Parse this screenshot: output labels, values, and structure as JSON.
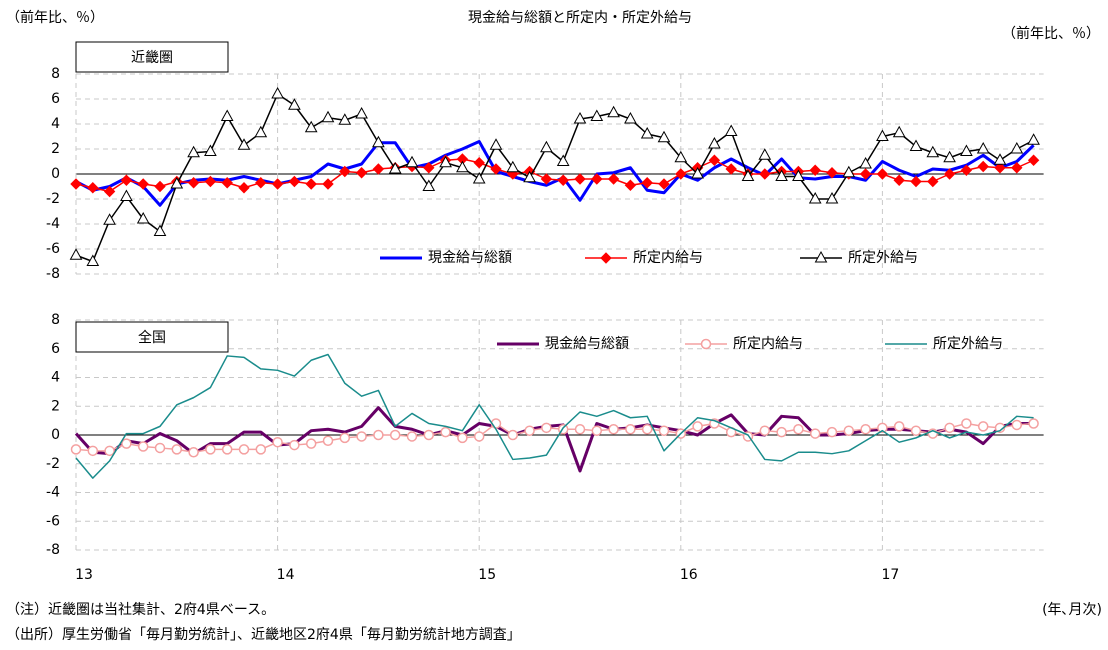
{
  "chart_data": [
    {
      "type": "line",
      "title": "現金給与総額と所定内・所定外給与",
      "y_label": "（前年比、％）",
      "y2_label": "（前年比、％）",
      "panel_label": "近畿圏",
      "ylim": [
        -8,
        8
      ],
      "yticks": [
        8,
        6,
        4,
        2,
        0,
        -2,
        -4,
        -6,
        -8
      ],
      "grid": true,
      "series": [
        {
          "name": "現金給与総額",
          "color": "#0000ff",
          "marker": "none",
          "values": [
            -0.6,
            -1.3,
            -1.0,
            -0.3,
            -1.0,
            -2.5,
            -0.8,
            -0.5,
            -0.4,
            -0.5,
            -0.2,
            -0.5,
            -0.8,
            -0.5,
            -0.2,
            0.8,
            0.4,
            0.8,
            2.5,
            2.5,
            0.5,
            0.8,
            1.5,
            2.0,
            2.6,
            0.2,
            -0.2,
            -0.6,
            -0.9,
            -0.3,
            -2.1,
            0,
            0.1,
            0.5,
            -1.3,
            -1.5,
            0,
            -0.5,
            0.5,
            1.2,
            0.5,
            -0.1,
            1.2,
            -0.3,
            -0.4,
            -0.2,
            -0.2,
            -0.5,
            1.0,
            0.3,
            -0.2,
            0.4,
            0.3,
            0.7,
            1.5,
            0.5,
            1.0,
            2.3
          ]
        },
        {
          "name": "所定内給与",
          "color": "#ff0000",
          "marker": "diamond",
          "values": [
            -0.8,
            -1.1,
            -1.4,
            -0.5,
            -0.8,
            -1.0,
            -0.6,
            -0.7,
            -0.6,
            -0.7,
            -1.1,
            -0.7,
            -0.8,
            -0.6,
            -0.8,
            -0.8,
            0.2,
            0.1,
            0.4,
            0.5,
            0.6,
            0.5,
            1.1,
            1.2,
            0.9,
            0.4,
            0,
            0.2,
            -0.4,
            -0.5,
            -0.4,
            -0.4,
            -0.4,
            -0.9,
            -0.7,
            -0.8,
            0,
            0.5,
            1.1,
            0.4,
            0,
            0,
            0.2,
            0.2,
            0.3,
            0.1,
            0,
            0,
            0,
            -0.5,
            -0.6,
            -0.6,
            0,
            0.3,
            0.6,
            0.5,
            0.5,
            1.1
          ]
        },
        {
          "name": "所定外給与",
          "color": "#000000",
          "marker": "triangle",
          "values": [
            -6.5,
            -7,
            -3.7,
            -1.8,
            -3.6,
            -4.6,
            -0.8,
            1.7,
            1.8,
            4.6,
            2.3,
            3.3,
            6.4,
            5.5,
            3.7,
            4.5,
            4.3,
            4.8,
            2.5,
            0.4,
            0.9,
            -1.0,
            0.9,
            0.5,
            -0.4,
            2.3,
            0.5,
            -0.3,
            2.1,
            1.0,
            4.4,
            4.6,
            4.9,
            4.4,
            3.2,
            2.9,
            1.3,
            0.0,
            2.4,
            3.4,
            -0.2,
            1.5,
            -0.2,
            -0.2,
            -2.0,
            -2.0,
            0.1,
            0.8,
            3.0,
            3.3,
            2.2,
            1.7,
            1.3,
            1.8,
            2.0,
            1.1,
            2.0,
            2.7
          ]
        }
      ]
    },
    {
      "type": "line",
      "panel_label": "全国",
      "x_label": "(年､月次)",
      "notes": [
        "（注）近畿圏は当社集計、2府4県ベース。",
        "（出所）厚生労働省「毎月勤労統計」、近畿地区2府4県「毎月勤労統計地方調査」"
      ],
      "categories": [
        "13",
        null,
        null,
        null,
        null,
        null,
        null,
        null,
        null,
        null,
        null,
        null,
        "14",
        null,
        null,
        null,
        null,
        null,
        null,
        null,
        null,
        null,
        null,
        null,
        "15",
        null,
        null,
        null,
        null,
        null,
        null,
        null,
        null,
        null,
        null,
        null,
        "16",
        null,
        null,
        null,
        null,
        null,
        null,
        null,
        null,
        null,
        null,
        null,
        "17",
        null,
        null,
        null,
        null,
        null,
        null,
        null,
        null,
        null
      ],
      "ylim": [
        -8,
        8
      ],
      "yticks": [
        8,
        6,
        4,
        2,
        0,
        -2,
        -4,
        -6,
        -8
      ],
      "grid": true,
      "series": [
        {
          "name": "現金給与総額",
          "color": "#660066",
          "marker": "none",
          "values": [
            0.1,
            -1.2,
            -1.3,
            -0.4,
            -0.6,
            0.1,
            -0.4,
            -1.3,
            -0.6,
            -0.6,
            0.2,
            0.2,
            -0.7,
            -0.6,
            0.3,
            0.4,
            0.2,
            0.6,
            1.9,
            0.6,
            0.4,
            0,
            0.3,
            0,
            0.8,
            0.6,
            0,
            0.4,
            0.6,
            0.7,
            -2.5,
            0.8,
            0.4,
            0.5,
            0.7,
            0.5,
            0.3,
            0,
            0.8,
            1.4,
            0.1,
            0,
            1.3,
            1.2,
            0,
            0,
            0.1,
            0.3,
            0.4,
            0.4,
            0.3,
            0.2,
            0.4,
            0.2,
            -0.6,
            0.6,
            0.8,
            0.8
          ]
        },
        {
          "name": "所定内給与",
          "color": "#f4a0a0",
          "marker": "circle",
          "values": [
            -1.0,
            -1.1,
            -1.1,
            -0.6,
            -0.8,
            -0.9,
            -1.0,
            -1.2,
            -1.0,
            -1.0,
            -1.0,
            -1.0,
            -0.5,
            -0.7,
            -0.6,
            -0.4,
            -0.2,
            -0.1,
            0,
            0,
            -0.1,
            0,
            0.2,
            -0.2,
            -0.1,
            0.8,
            0,
            0.3,
            0.5,
            0.4,
            0.4,
            0.3,
            0.4,
            0.4,
            0.4,
            0.3,
            0.1,
            0.6,
            0.8,
            0.2,
            -0.1,
            0.3,
            0.2,
            0.4,
            0.1,
            0.2,
            0.3,
            0.4,
            0.5,
            0.6,
            0.3,
            0.1,
            0.5,
            0.8,
            0.6,
            0.5,
            0.7,
            0.8
          ]
        },
        {
          "name": "所定外給与",
          "color": "#1a8c8c",
          "marker": "none",
          "values": [
            -1.6,
            -3.0,
            -1.8,
            0.1,
            0.1,
            0.6,
            2.1,
            2.6,
            3.3,
            5.5,
            5.4,
            4.6,
            4.5,
            4.1,
            5.2,
            5.6,
            3.6,
            2.7,
            3.1,
            0.6,
            1.5,
            0.8,
            0.6,
            0.3,
            2.1,
            0.4,
            -1.7,
            -1.6,
            -1.4,
            0.5,
            1.6,
            1.3,
            1.7,
            1.2,
            1.3,
            -1.1,
            0.1,
            1.2,
            1.0,
            0.5,
            0,
            -1.7,
            -1.8,
            -1.2,
            -1.2,
            -1.3,
            -1.1,
            -0.4,
            0.3,
            -0.5,
            -0.2,
            0.3,
            -0.2,
            0.2,
            0,
            0.3,
            1.3,
            1.2
          ]
        }
      ]
    }
  ]
}
